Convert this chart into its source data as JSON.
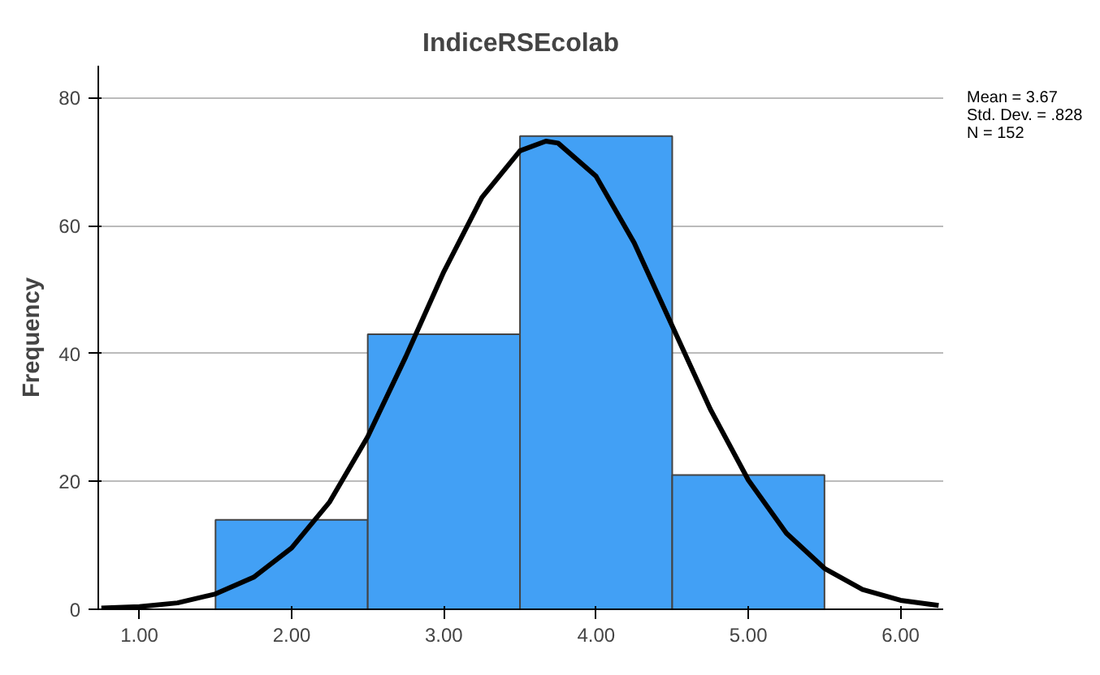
{
  "chart_data": {
    "type": "histogram",
    "title": "IndiceRSEcolab",
    "ylabel": "Frequency",
    "bins": [
      1.5,
      2.5,
      3.5,
      4.5,
      5.5
    ],
    "values": [
      14,
      43,
      74,
      21
    ],
    "color": "#42a0f5",
    "xlim": [
      0.73,
      6.28
    ],
    "ylim": [
      0,
      85
    ],
    "xticks": [
      {
        "value": 1,
        "label": "1.00"
      },
      {
        "value": 2,
        "label": "2.00"
      },
      {
        "value": 3,
        "label": "3.00"
      },
      {
        "value": 4,
        "label": "4.00"
      },
      {
        "value": 5,
        "label": "5.00"
      },
      {
        "value": 6,
        "label": "6.00"
      }
    ],
    "yticks": [
      0,
      20,
      40,
      60,
      80
    ],
    "grid": "y",
    "series": [
      {
        "type": "line",
        "color": "#000000",
        "x": [
          0.75,
          1.0,
          1.25,
          1.5,
          1.75,
          2.0,
          2.25,
          2.5,
          2.75,
          3.0,
          3.25,
          3.5,
          3.67,
          3.75,
          4.0,
          4.25,
          4.5,
          4.75,
          5.0,
          5.25,
          5.5,
          5.75,
          6.0,
          6.25
        ],
        "values": [
          0.2,
          0.4,
          1.0,
          2.4,
          5.0,
          9.6,
          16.8,
          27.0,
          39.5,
          52.8,
          64.4,
          71.7,
          73.2,
          72.9,
          67.7,
          57.3,
          44.3,
          31.3,
          20.2,
          11.9,
          6.4,
          3.1,
          1.4,
          0.6
        ]
      }
    ],
    "annotations": [
      "Mean = 3.67",
      "Std. Dev. = .828",
      "N = 152"
    ]
  }
}
